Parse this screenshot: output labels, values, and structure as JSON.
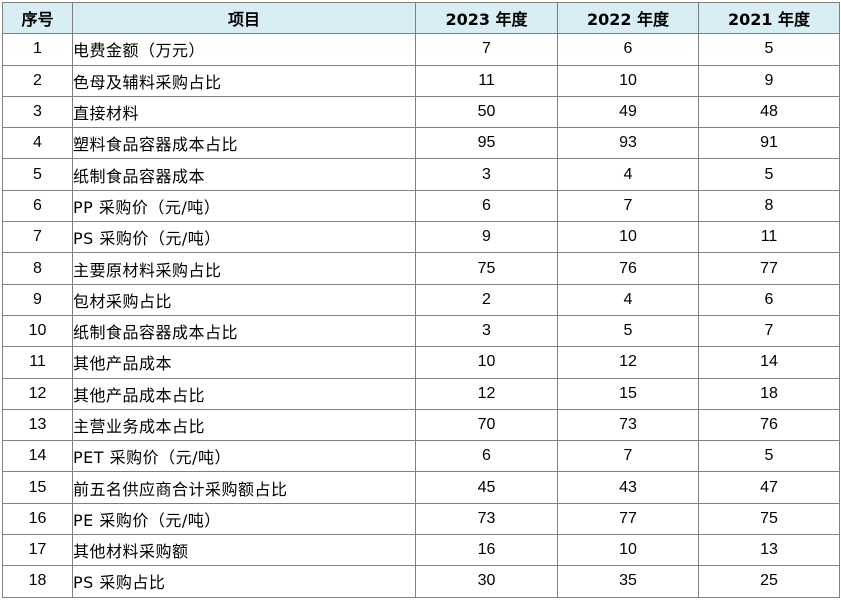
{
  "table": {
    "headers": [
      "序号",
      "项目",
      "2023 年度",
      "2022 年度",
      "2021 年度"
    ],
    "rows": [
      {
        "seq": "1",
        "item": "电费金额（万元）",
        "y2023": "7",
        "y2022": "6",
        "y2021": "5"
      },
      {
        "seq": "2",
        "item": "色母及辅料采购占比",
        "y2023": "11",
        "y2022": "10",
        "y2021": "9"
      },
      {
        "seq": "3",
        "item": "直接材料",
        "y2023": "50",
        "y2022": "49",
        "y2021": "48"
      },
      {
        "seq": "4",
        "item": "塑料食品容器成本占比",
        "y2023": "95",
        "y2022": "93",
        "y2021": "91"
      },
      {
        "seq": "5",
        "item": "纸制食品容器成本",
        "y2023": "3",
        "y2022": "4",
        "y2021": "5"
      },
      {
        "seq": "6",
        "item": "PP 采购价（元/吨）",
        "y2023": "6",
        "y2022": "7",
        "y2021": "8"
      },
      {
        "seq": "7",
        "item": "PS 采购价（元/吨）",
        "y2023": "9",
        "y2022": "10",
        "y2021": "11"
      },
      {
        "seq": "8",
        "item": "主要原材料采购占比",
        "y2023": "75",
        "y2022": "76",
        "y2021": "77"
      },
      {
        "seq": "9",
        "item": "包材采购占比",
        "y2023": "2",
        "y2022": "4",
        "y2021": "6"
      },
      {
        "seq": "10",
        "item": "纸制食品容器成本占比",
        "y2023": "3",
        "y2022": "5",
        "y2021": "7"
      },
      {
        "seq": "11",
        "item": "其他产品成本",
        "y2023": "10",
        "y2022": "12",
        "y2021": "14"
      },
      {
        "seq": "12",
        "item": "其他产品成本占比",
        "y2023": "12",
        "y2022": "15",
        "y2021": "18"
      },
      {
        "seq": "13",
        "item": "主营业务成本占比",
        "y2023": "70",
        "y2022": "73",
        "y2021": "76"
      },
      {
        "seq": "14",
        "item": "PET 采购价（元/吨）",
        "y2023": "6",
        "y2022": "7",
        "y2021": "5"
      },
      {
        "seq": "15",
        "item": "前五名供应商合计采购额占比",
        "y2023": "45",
        "y2022": "43",
        "y2021": "47"
      },
      {
        "seq": "16",
        "item": "PE 采购价（元/吨）",
        "y2023": "73",
        "y2022": "77",
        "y2021": "75"
      },
      {
        "seq": "17",
        "item": "其他材料采购额",
        "y2023": "16",
        "y2022": "10",
        "y2021": "13"
      },
      {
        "seq": "18",
        "item": "PS 采购占比",
        "y2023": "30",
        "y2022": "35",
        "y2021": "25"
      }
    ]
  },
  "colors": {
    "header_background": "#d9eef4",
    "border": "#7f7f7f"
  }
}
